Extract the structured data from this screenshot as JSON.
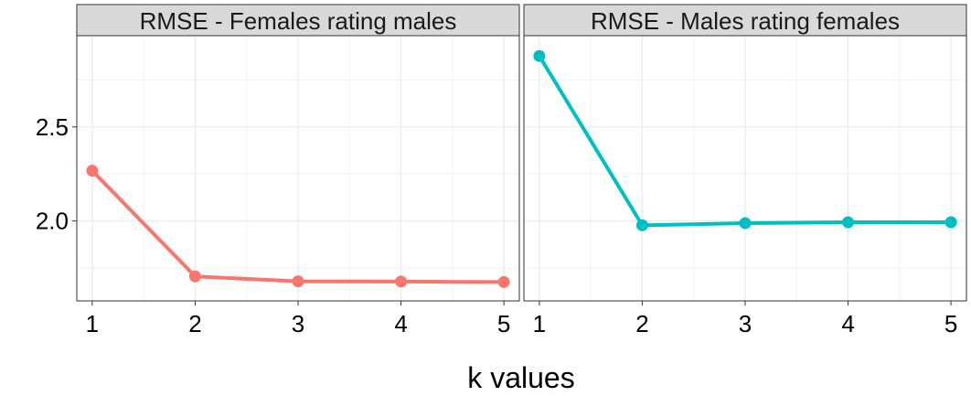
{
  "chart_data": {
    "type": "line",
    "xlabel": "k values",
    "ylabel": "",
    "ylim": [
      1.575,
      2.985
    ],
    "xlim": [
      0.85,
      5.15
    ],
    "x_ticks": [
      "1",
      "2",
      "3",
      "4",
      "5"
    ],
    "y_ticks": [
      "2.0",
      "2.5"
    ],
    "y_tick_values": [
      2.0,
      2.5
    ],
    "grid": true,
    "panels": [
      {
        "title": "RMSE - Females rating males",
        "color": "#F8766D",
        "x": [
          1,
          2,
          3,
          4,
          5
        ],
        "values": [
          2.267,
          1.705,
          1.679,
          1.678,
          1.675
        ]
      },
      {
        "title": "RMSE - Males rating females",
        "color": "#00BFC4",
        "x": [
          1,
          2,
          3,
          4,
          5
        ],
        "values": [
          2.877,
          1.977,
          1.988,
          1.993,
          1.993
        ]
      }
    ]
  }
}
